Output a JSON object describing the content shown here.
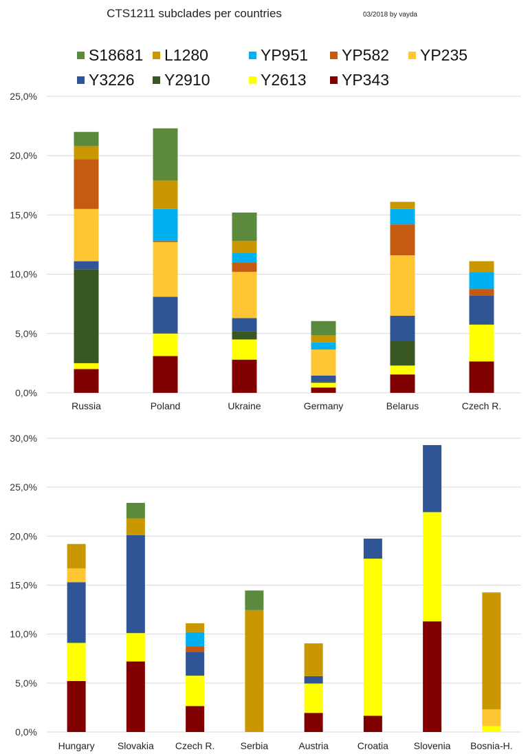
{
  "header": {
    "title": "CTS1211 subclades per countries",
    "credit": "03/2018  by vayda"
  },
  "legend": {
    "rows": [
      [
        {
          "name": "S18681",
          "color": "#5b8a3c"
        },
        {
          "name": "L1280",
          "color": "#c99700"
        },
        {
          "name": "YP951",
          "color": "#00b0f0"
        },
        {
          "name": "YP582",
          "color": "#c55a11"
        },
        {
          "name": "YP235",
          "color": "#ffc532"
        }
      ],
      [
        {
          "name": "Y3226",
          "color": "#2f5597"
        },
        {
          "name": "Y2910",
          "color": "#385723"
        },
        {
          "name": "Y2613",
          "color": "#ffff00"
        },
        {
          "name": "YP343",
          "color": "#800000"
        }
      ]
    ]
  },
  "chart_data": [
    {
      "type": "bar",
      "stacked": true,
      "title": "CTS1211 subclades per countries",
      "xlabel": "",
      "ylabel": "",
      "ylim": [
        0,
        25
      ],
      "yticks": [
        "0,0%",
        "5,0%",
        "10,0%",
        "15,0%",
        "20,0%",
        "25,0%"
      ],
      "grid": true,
      "legend": "top",
      "categories": [
        "Russia",
        "Poland",
        "Ukraine",
        "Germany",
        "Belarus",
        "Czech R."
      ],
      "series": [
        {
          "name": "YP343",
          "color": "#800000",
          "values": [
            2.0,
            3.1,
            2.8,
            0.45,
            1.55,
            2.65
          ]
        },
        {
          "name": "Y2613",
          "color": "#ffff00",
          "values": [
            0.5,
            1.9,
            1.7,
            0.4,
            0.75,
            3.1
          ]
        },
        {
          "name": "Y2910",
          "color": "#385723",
          "values": [
            7.9,
            0.1,
            0.7,
            0.1,
            2.05,
            0
          ]
        },
        {
          "name": "Y3226",
          "color": "#2f5597",
          "values": [
            0.7,
            3.0,
            1.1,
            0.5,
            2.15,
            2.45
          ]
        },
        {
          "name": "YP235",
          "color": "#ffc532",
          "values": [
            4.4,
            4.6,
            3.9,
            2.2,
            5.1,
            0
          ]
        },
        {
          "name": "YP582",
          "color": "#c55a11",
          "values": [
            4.2,
            0.1,
            0.8,
            0,
            2.6,
            0.55
          ]
        },
        {
          "name": "YP951",
          "color": "#00b0f0",
          "values": [
            0,
            2.7,
            0.8,
            0.6,
            1.3,
            1.45
          ]
        },
        {
          "name": "L1280",
          "color": "#c99700",
          "values": [
            1.1,
            2.4,
            1.0,
            0.6,
            0.6,
            0.9
          ]
        },
        {
          "name": "S18681",
          "color": "#5b8a3c",
          "values": [
            1.2,
            4.4,
            2.4,
            1.2,
            0,
            0
          ]
        }
      ]
    },
    {
      "type": "bar",
      "stacked": true,
      "title": "",
      "xlabel": "",
      "ylabel": "",
      "ylim": [
        0,
        30
      ],
      "yticks": [
        "0,0%",
        "5,0%",
        "10,0%",
        "15,0%",
        "20,0%",
        "25,0%",
        "30,0%"
      ],
      "grid": true,
      "legend": "top",
      "categories": [
        "Hungary",
        "Slovakia",
        "Czech R.",
        "Serbia",
        "Austria",
        "Croatia",
        "Slovenia",
        "Bosnia-H."
      ],
      "series": [
        {
          "name": "YP343",
          "color": "#800000",
          "values": [
            5.2,
            7.2,
            2.65,
            0,
            1.95,
            1.65,
            11.3,
            0
          ]
        },
        {
          "name": "Y2613",
          "color": "#ffff00",
          "values": [
            3.9,
            2.9,
            3.1,
            0,
            3.0,
            16.05,
            11.15,
            0.6
          ]
        },
        {
          "name": "Y2910",
          "color": "#385723",
          "values": [
            0,
            0,
            0,
            0,
            0,
            0,
            0,
            0
          ]
        },
        {
          "name": "Y3226",
          "color": "#2f5597",
          "values": [
            6.2,
            10.0,
            2.45,
            0,
            0.75,
            2.05,
            6.85,
            0
          ]
        },
        {
          "name": "YP235",
          "color": "#ffc532",
          "values": [
            1.4,
            0,
            0,
            0,
            0,
            0,
            0,
            1.7
          ]
        },
        {
          "name": "YP582",
          "color": "#c55a11",
          "values": [
            0,
            0,
            0.55,
            0,
            0,
            0,
            0,
            0
          ]
        },
        {
          "name": "YP951",
          "color": "#00b0f0",
          "values": [
            0,
            0,
            1.45,
            0,
            0,
            0,
            0,
            0
          ]
        },
        {
          "name": "L1280",
          "color": "#c99700",
          "values": [
            2.5,
            1.7,
            0.9,
            12.45,
            3.35,
            0,
            0,
            11.95
          ]
        },
        {
          "name": "S18681",
          "color": "#5b8a3c",
          "values": [
            0,
            1.6,
            0,
            2.0,
            0,
            0,
            0,
            0
          ]
        }
      ]
    }
  ]
}
